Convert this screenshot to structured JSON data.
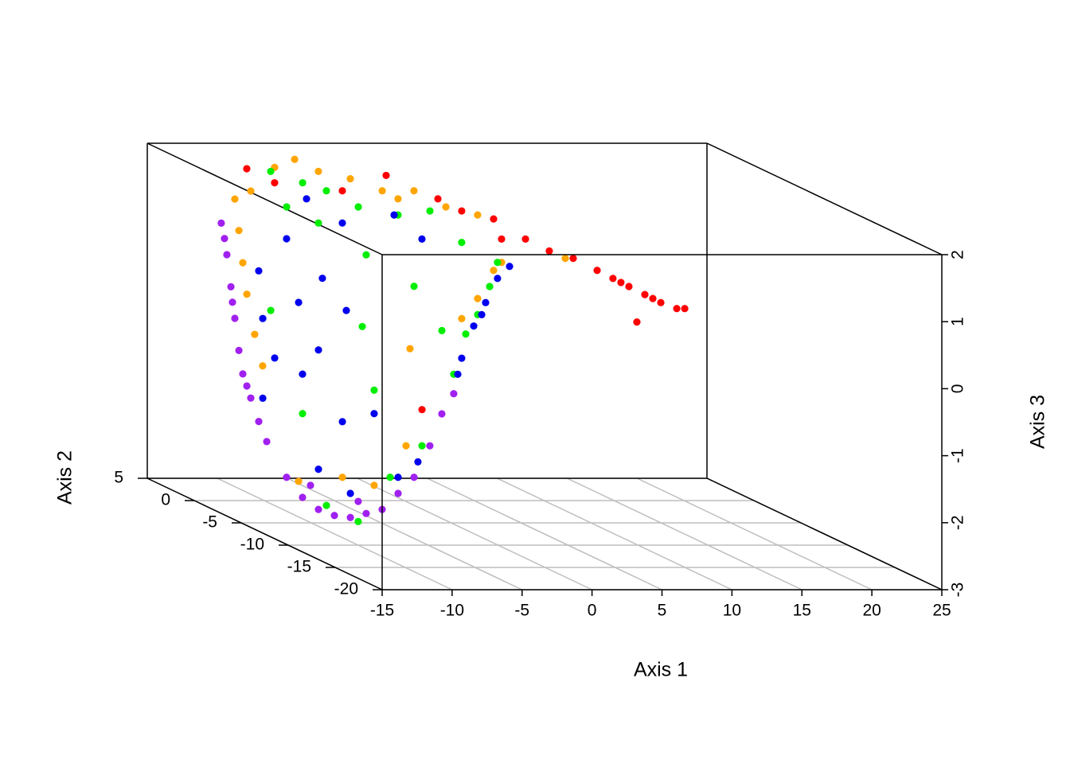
{
  "chart_data": {
    "type": "scatter3d",
    "x_label": "Axis 1",
    "y_label": "Axis 2",
    "z_label": "Axis 3",
    "xlim": [
      -15,
      25
    ],
    "ylim": [
      -20,
      5
    ],
    "zlim": [
      -3,
      2
    ],
    "xticks": [
      -15,
      -10,
      -5,
      0,
      5,
      10,
      15,
      20,
      25
    ],
    "yticks": [
      -20,
      -15,
      -10,
      -5,
      0,
      5
    ],
    "zticks": [
      -3,
      -2,
      -1,
      0,
      1,
      2
    ],
    "grid": true,
    "series": [
      {
        "color": "#ffa500",
        "x": [
          -12.1,
          -11.81,
          -11.53,
          -11.24,
          -10.68,
          -10.11,
          -10.96,
          -5.9,
          -4.47,
          -2.77,
          -0.49,
          1.79,
          4.06,
          6.34,
          8.61,
          2.92,
          -10.9,
          -7.77,
          -5.5,
          -3.22,
          -2.6,
          -1.46,
          -0.32,
          0.25,
          4.8,
          -2.94
        ],
        "y": [
          0,
          0,
          0,
          0,
          0,
          0,
          0,
          5,
          5,
          5,
          5,
          5,
          5,
          5,
          5,
          5,
          -5,
          -5,
          -5,
          -5,
          -10,
          -10,
          -10,
          -10,
          -10,
          -5
        ],
        "z": [
          1.5,
          1.03,
          0.55,
          0.08,
          -0.52,
          -0.99,
          1.62,
          1.64,
          1.76,
          1.58,
          1.47,
          1.29,
          1.29,
          1.05,
          0.93,
          1.17,
          -2.38,
          -2.32,
          -2.44,
          -1.85,
          0.38,
          0.68,
          1.1,
          1.22,
          1.28,
          -0.4
        ]
      },
      {
        "color": "#ff0000",
        "x": [
          -7.89,
          -5.9,
          -1.06,
          2.07,
          5.77,
          7.47,
          9.75,
          10.32,
          12.03,
          3.66,
          5.37,
          7.08,
          8.21,
          9.35,
          10.49,
          11.63,
          12.77,
          13.34,
          9.92,
          8.78,
          11.06,
          -2.08
        ],
        "y": [
          5,
          5,
          5,
          5,
          5,
          5,
          5,
          5,
          5,
          -10,
          -10,
          -10,
          -10,
          -10,
          -10,
          -10,
          -10,
          -10,
          -10,
          -10,
          -10,
          -5
        ],
        "z": [
          1.62,
          1.41,
          1.29,
          1.52,
          1.17,
          0.99,
          0.87,
          0.57,
          0.57,
          1.39,
          1.28,
          1.1,
          0.98,
          0.86,
          0.74,
          0.62,
          0.53,
          0.53,
          0.33,
          0.92,
          0.68,
          -1.31
        ]
      },
      {
        "color": "#00ee00",
        "x": [
          -6.18,
          -3.9,
          -2.2,
          0.08,
          2.92,
          5.2,
          7.47,
          -2.77,
          -5.04,
          -6.07,
          -2.65,
          -5.5,
          -6.35,
          -0.66,
          -12.89,
          -2.31,
          -1.46,
          -0.6,
          -0.04,
          -3.17,
          -10.62,
          -8.91,
          -6.64,
          -4.36,
          -2.08
        ],
        "y": [
          5,
          5,
          5,
          5,
          5,
          5,
          5,
          5,
          5,
          -5,
          -5,
          -5,
          -5,
          -5,
          -5,
          -10,
          -10,
          -10,
          -10,
          -10,
          -5,
          -5,
          -5,
          -5,
          -5
        ],
        "z": [
          1.58,
          1.41,
          1.29,
          1.05,
          0.93,
          0.99,
          0.52,
          0.81,
          1.05,
          1.0,
          0.53,
          -1.02,
          -0.07,
          -0.13,
          0.17,
          0.15,
          0.44,
          0.86,
          1.22,
          -0.45,
          -1.37,
          -2.74,
          -2.98,
          -2.32,
          -1.85
        ]
      },
      {
        "color": "#0000ee",
        "x": [
          -13.75,
          -13.46,
          -12.61,
          -11.76,
          -10.9,
          -9.2,
          -7.49,
          -9.48,
          -10.62,
          -7.77,
          -5.5,
          -13.46,
          -1.06,
          2.64,
          4.63,
          -3.62,
          -2.6,
          -1.74,
          -0.89,
          -0.04,
          0.82,
          -1.17,
          -2.88,
          -9.48,
          -3.79,
          -2.37,
          -7.2
        ],
        "y": [
          -5,
          -5,
          -5,
          -5,
          -5,
          -5,
          -5,
          -5,
          -5,
          -5,
          -5,
          -5,
          5,
          5,
          5,
          5,
          -10,
          -10,
          -10,
          -10,
          -10,
          -10,
          -10,
          -5,
          -5,
          -5,
          -5
        ],
        "z": [
          0.76,
          0.05,
          -0.54,
          1.24,
          0.29,
          0.65,
          0.17,
          -0.42,
          -0.78,
          -1.49,
          -1.37,
          -1.14,
          0.81,
          0.93,
          0.57,
          1.17,
          -0.21,
          0.27,
          0.62,
          0.98,
          1.16,
          0.44,
          -0.45,
          -2.2,
          -2.32,
          -2.09,
          -2.56
        ]
      },
      {
        "color": "#a020f0",
        "x": [
          -13.07,
          -12.67,
          -12.38,
          -12.1,
          -11.81,
          -11.53,
          -10.96,
          -10.39,
          -9.82,
          -12.84,
          -12.27,
          -11.24,
          -11.76,
          -10.62,
          -9.48,
          -8.34,
          -7.2,
          -6.07,
          -4.93,
          -3.79,
          -2.65,
          -1.52,
          -10.05,
          -6.64,
          -3.17,
          -4.02
        ],
        "y": [
          0,
          0,
          0,
          0,
          0,
          0,
          0,
          0,
          0,
          0,
          0,
          0,
          -5,
          -5,
          -5,
          -5,
          -5,
          -5,
          -5,
          -5,
          -5,
          -5,
          -5,
          -5,
          -10,
          -10
        ],
        "z": [
          1.14,
          0.67,
          0.19,
          -0.28,
          -0.76,
          -1.11,
          -1.47,
          -1.82,
          -2.12,
          0.91,
          -0.04,
          -1.29,
          -2.32,
          -2.62,
          -2.8,
          -2.89,
          -2.92,
          -2.86,
          -2.8,
          -2.56,
          -2.32,
          -1.85,
          -2.44,
          -2.68,
          -0.74,
          -1.04
        ]
      }
    ]
  }
}
